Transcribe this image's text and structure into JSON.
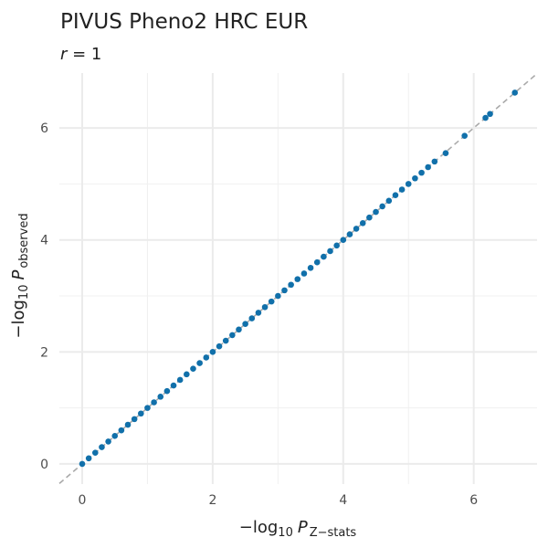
{
  "chart_data": {
    "type": "scatter",
    "title": "PIVUS Pheno2 HRC EUR",
    "subtitle": {
      "var": "r",
      "rest": " = 1"
    },
    "x_label": {
      "prefix": "−log",
      "sub": "10",
      "var": "P",
      "var_sub": "Z−stats"
    },
    "y_label": {
      "prefix": "−log",
      "sub": "10",
      "var": "P",
      "var_sub": "observed"
    },
    "xlim": [
      -0.35,
      6.97
    ],
    "ylim": [
      -0.36,
      6.98
    ],
    "xticks": [
      0,
      2,
      4,
      6
    ],
    "yticks": [
      0,
      2,
      4,
      6
    ],
    "minor_xticks": [
      1,
      3,
      5
    ],
    "minor_yticks": [
      1,
      3,
      5
    ],
    "grid": true,
    "reference_line": true,
    "color": "#1170aa",
    "x": [
      0,
      0.1,
      0.2,
      0.3,
      0.4,
      0.5,
      0.6,
      0.7,
      0.8,
      0.9,
      1,
      1.1,
      1.2,
      1.3,
      1.4,
      1.5,
      1.6,
      1.7,
      1.8,
      1.9,
      2,
      2.1,
      2.2,
      2.3,
      2.4,
      2.5,
      2.6,
      2.7,
      2.8,
      2.9,
      3,
      3.1,
      3.2,
      3.3,
      3.4,
      3.5,
      3.6,
      3.7,
      3.8,
      3.9,
      4,
      4.1,
      4.2,
      4.3,
      4.4,
      4.5,
      4.6,
      4.7,
      4.8,
      4.9,
      5,
      5.1,
      5.2,
      5.3,
      5.4,
      5.57,
      5.86,
      6.18,
      6.25,
      6.63
    ],
    "y": [
      0,
      0.1,
      0.2,
      0.3,
      0.4,
      0.5,
      0.6,
      0.7,
      0.8,
      0.9,
      1,
      1.1,
      1.2,
      1.3,
      1.4,
      1.5,
      1.6,
      1.7,
      1.8,
      1.9,
      2,
      2.1,
      2.2,
      2.3,
      2.4,
      2.5,
      2.6,
      2.7,
      2.8,
      2.9,
      3,
      3.1,
      3.2,
      3.3,
      3.4,
      3.5,
      3.6,
      3.7,
      3.8,
      3.9,
      4,
      4.1,
      4.2,
      4.3,
      4.4,
      4.5,
      4.6,
      4.7,
      4.8,
      4.9,
      5,
      5.1,
      5.2,
      5.3,
      5.4,
      5.55,
      5.86,
      6.18,
      6.25,
      6.63
    ]
  }
}
